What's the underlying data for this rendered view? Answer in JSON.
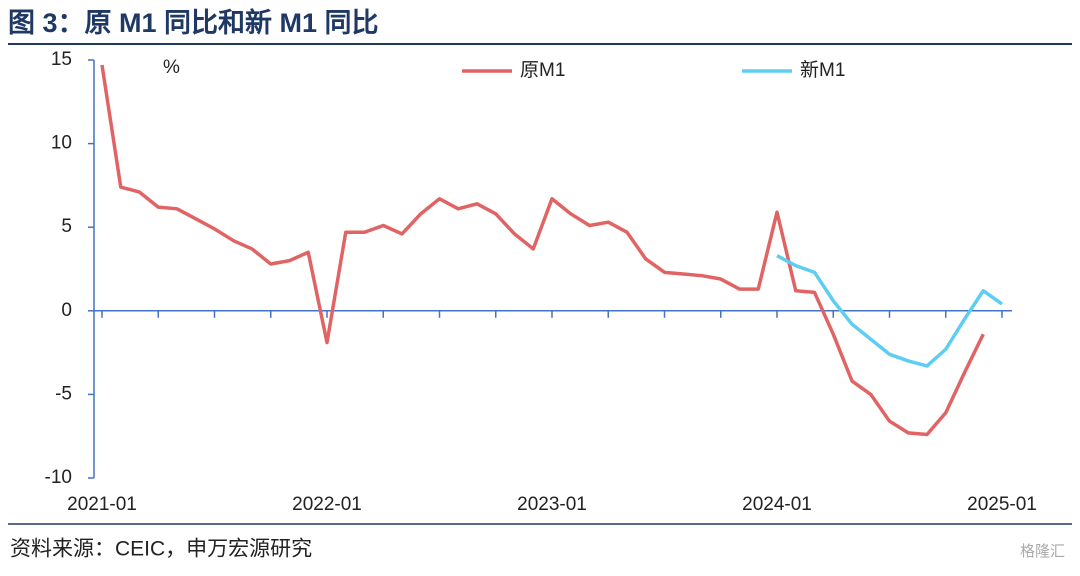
{
  "title": "图 3：原 M1 同比和新 M1 同比",
  "source": "资料来源：CEIC，申万宏源研究",
  "watermark": "格隆汇",
  "chart_data": {
    "type": "line",
    "y_unit": "%",
    "categories": [
      "2021-01",
      null,
      null,
      null,
      null,
      null,
      null,
      null,
      null,
      null,
      null,
      null,
      "2022-01",
      null,
      null,
      null,
      null,
      null,
      null,
      null,
      null,
      null,
      null,
      null,
      "2023-01",
      null,
      null,
      null,
      null,
      null,
      null,
      null,
      null,
      null,
      null,
      null,
      "2024-01",
      null,
      null,
      null,
      null,
      null,
      null,
      null,
      null,
      null,
      null,
      null,
      "2025-01"
    ],
    "series": [
      {
        "name": "原M1",
        "color": "#e06464",
        "values": [
          14.7,
          7.4,
          7.1,
          6.2,
          6.1,
          5.5,
          4.9,
          4.2,
          3.7,
          2.8,
          3.0,
          3.5,
          -1.9,
          4.7,
          4.7,
          5.1,
          4.6,
          5.8,
          6.7,
          6.1,
          6.4,
          5.8,
          4.6,
          3.7,
          6.7,
          5.8,
          5.1,
          5.3,
          4.7,
          3.1,
          2.3,
          2.2,
          2.1,
          1.9,
          1.3,
          1.3,
          5.9,
          1.2,
          1.1,
          -1.4,
          -4.2,
          -5.0,
          -6.6,
          -7.3,
          -7.4,
          -6.1,
          -3.7,
          -1.4,
          null
        ]
      },
      {
        "name": "新M1",
        "color": "#5fcdf2",
        "values": [
          null,
          null,
          null,
          null,
          null,
          null,
          null,
          null,
          null,
          null,
          null,
          null,
          null,
          null,
          null,
          null,
          null,
          null,
          null,
          null,
          null,
          null,
          null,
          null,
          null,
          null,
          null,
          null,
          null,
          null,
          null,
          null,
          null,
          null,
          null,
          null,
          3.3,
          2.7,
          2.3,
          0.6,
          -0.8,
          -1.7,
          -2.6,
          -3.0,
          -3.3,
          -2.3,
          -0.5,
          1.2,
          0.4
        ]
      }
    ],
    "ylim": [
      -10,
      15
    ],
    "yticks": [
      -10,
      -5,
      0,
      5,
      10,
      15
    ]
  }
}
